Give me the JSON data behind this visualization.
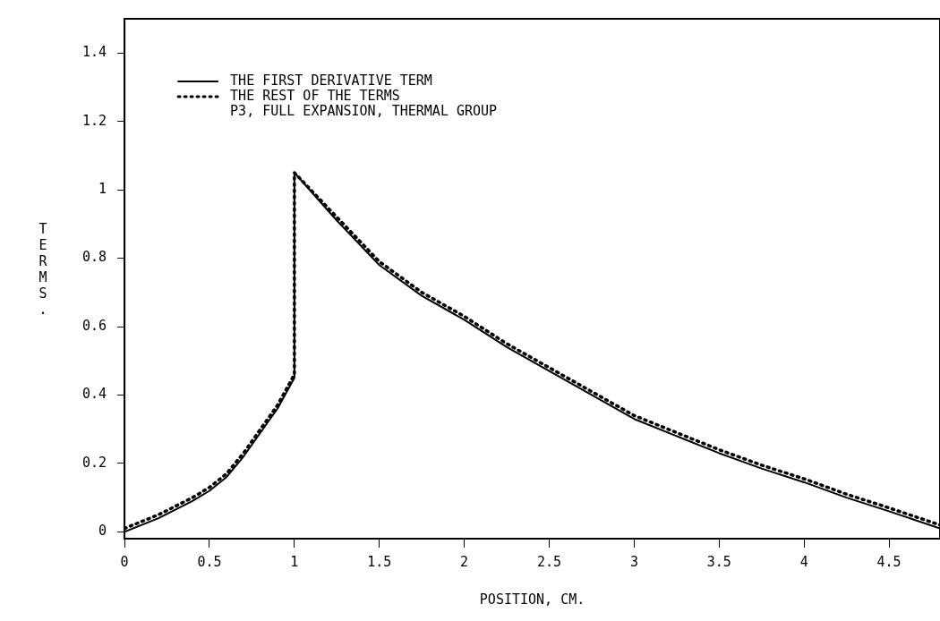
{
  "chart_data": {
    "type": "line",
    "xlabel": "POSITION, CM.",
    "ylabel": "TERMS.",
    "annotations": [
      "P3, FULL EXPANSION, THERMAL GROUP"
    ],
    "legend": "top left",
    "marker": "none",
    "xlim": [
      0,
      4.8
    ],
    "xticks": [
      0,
      0.5,
      1,
      1.5,
      2,
      2.5,
      3,
      3.5,
      4,
      4.5
    ],
    "ylim": [
      -0.02,
      1.5
    ],
    "yticks": [
      0,
      0.2,
      0.4,
      0.6,
      0.8,
      1,
      1.2,
      1.4
    ],
    "series": [
      {
        "name": "THE FIRST DERIVATIVE TERM",
        "color": "#000000",
        "line_style": "solid",
        "x": [
          0,
          0.2,
          0.4,
          0.5,
          0.6,
          0.7,
          0.8,
          0.9,
          1.0,
          1.0,
          1.25,
          1.5,
          1.75,
          2.0,
          2.25,
          2.5,
          2.75,
          3.0,
          3.25,
          3.5,
          3.75,
          4.0,
          4.25,
          4.5,
          4.8
        ],
        "values": [
          0,
          0.04,
          0.09,
          0.12,
          0.16,
          0.22,
          0.29,
          0.36,
          0.45,
          1.05,
          0.91,
          0.78,
          0.69,
          0.62,
          0.54,
          0.47,
          0.4,
          0.33,
          0.28,
          0.23,
          0.185,
          0.145,
          0.1,
          0.06,
          0.01
        ]
      },
      {
        "name": "THE REST OF THE TERMS",
        "color": "#000000",
        "line_style": "dotted",
        "x": [
          0,
          0.2,
          0.4,
          0.5,
          0.6,
          0.7,
          0.8,
          0.9,
          1.0,
          1.0,
          1.25,
          1.5,
          1.75,
          2.0,
          2.25,
          2.5,
          2.75,
          3.0,
          3.25,
          3.5,
          3.75,
          4.0,
          4.25,
          4.5,
          4.8
        ],
        "values": [
          0.01,
          0.05,
          0.1,
          0.13,
          0.17,
          0.23,
          0.3,
          0.37,
          0.46,
          1.05,
          0.92,
          0.79,
          0.7,
          0.63,
          0.55,
          0.48,
          0.41,
          0.34,
          0.29,
          0.24,
          0.195,
          0.155,
          0.11,
          0.07,
          0.02
        ]
      }
    ]
  }
}
